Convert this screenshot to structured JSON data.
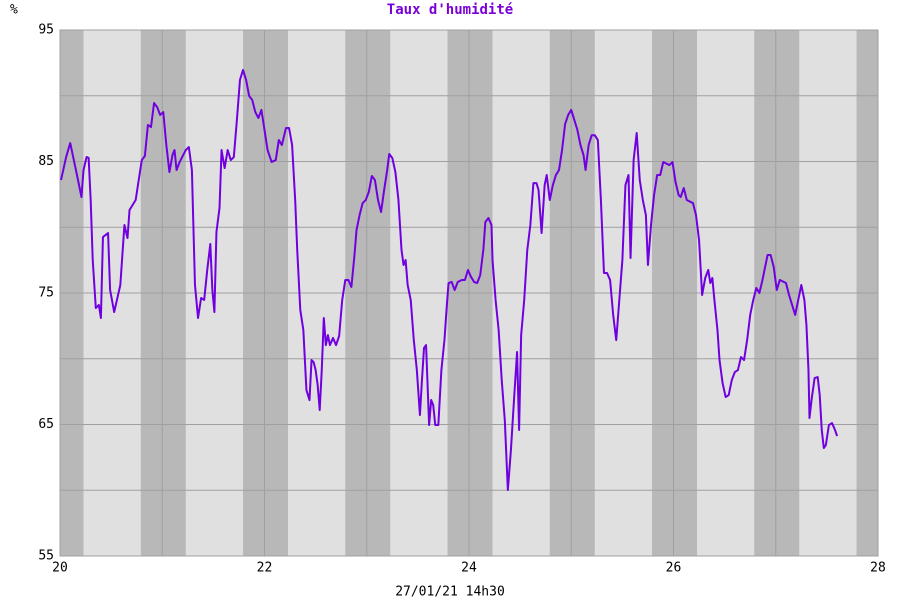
{
  "chart_data": {
    "type": "line",
    "title": "Taux d'humidité",
    "ylabel": "%",
    "xlabel": "27/01/21 14h30",
    "color": "#7000e0",
    "plot_background": "#e0e0e0",
    "band_color": "#b8b8b8",
    "grid_color": "#a0a0a0",
    "xlim": [
      20,
      28
    ],
    "xticks": [
      20,
      22,
      24,
      26,
      28
    ],
    "x_minor_grid": [
      21,
      23,
      25,
      27
    ],
    "ylim": [
      55,
      95
    ],
    "yticks": [
      55,
      65,
      75,
      85,
      95
    ],
    "y_minor_grid": [
      60,
      70,
      80,
      90
    ],
    "grid": true,
    "night_bands": [
      [
        20,
        20.23
      ],
      [
        20.79,
        21.23
      ],
      [
        21.79,
        22.23
      ],
      [
        22.79,
        23.23
      ],
      [
        23.79,
        24.23
      ],
      [
        24.79,
        25.23
      ],
      [
        25.79,
        26.23
      ],
      [
        26.79,
        27.23
      ],
      [
        27.79,
        28
      ]
    ],
    "x": [
      20.01,
      20.06,
      20.1,
      20.16,
      20.21,
      20.23,
      20.26,
      20.28,
      20.3,
      20.32,
      20.35,
      20.38,
      20.4,
      20.42,
      20.47,
      20.49,
      20.53,
      20.59,
      20.63,
      20.66,
      20.68,
      20.74,
      20.8,
      20.83,
      20.86,
      20.89,
      20.92,
      20.95,
      20.98,
      21.01,
      21.04,
      21.07,
      21.1,
      21.12,
      21.14,
      21.17,
      21.23,
      21.26,
      21.29,
      21.32,
      21.35,
      21.38,
      21.41,
      21.44,
      21.47,
      21.49,
      21.51,
      21.53,
      21.56,
      21.58,
      21.61,
      21.64,
      21.67,
      21.7,
      21.73,
      21.76,
      21.79,
      21.82,
      21.85,
      21.88,
      21.91,
      21.94,
      21.97,
      22.0,
      22.03,
      22.07,
      22.11,
      22.14,
      22.17,
      22.21,
      22.24,
      22.27,
      22.3,
      22.32,
      22.35,
      22.38,
      22.41,
      22.44,
      22.46,
      22.48,
      22.5,
      22.52,
      22.54,
      22.56,
      22.58,
      22.6,
      22.62,
      22.64,
      22.67,
      22.7,
      22.73,
      22.76,
      22.79,
      22.82,
      22.85,
      22.88,
      22.9,
      22.93,
      22.96,
      22.99,
      23.02,
      23.05,
      23.08,
      23.11,
      23.14,
      23.17,
      23.2,
      23.22,
      23.25,
      23.28,
      23.31,
      23.34,
      23.36,
      23.38,
      23.4,
      23.43,
      23.46,
      23.49,
      23.52,
      23.54,
      23.56,
      23.58,
      23.61,
      23.63,
      23.65,
      23.67,
      23.7,
      23.73,
      23.76,
      23.78,
      23.8,
      23.83,
      23.86,
      23.89,
      23.93,
      23.96,
      23.99,
      24.02,
      24.05,
      24.08,
      24.11,
      24.14,
      24.16,
      24.19,
      24.22,
      24.23,
      24.26,
      24.29,
      24.32,
      24.35,
      24.38,
      24.41,
      24.44,
      24.47,
      24.49,
      24.51,
      24.54,
      24.57,
      24.6,
      24.63,
      24.66,
      24.68,
      24.71,
      24.74,
      24.76,
      24.79,
      24.82,
      24.85,
      24.88,
      24.91,
      24.94,
      24.97,
      25.0,
      25.03,
      25.06,
      25.09,
      25.12,
      25.14,
      25.17,
      25.2,
      25.23,
      25.26,
      25.29,
      25.32,
      25.35,
      25.38,
      25.41,
      25.44,
      25.47,
      25.5,
      25.53,
      25.56,
      25.58,
      25.61,
      25.64,
      25.67,
      25.7,
      25.73,
      25.75,
      25.78,
      25.81,
      25.84,
      25.87,
      25.9,
      25.96,
      25.99,
      26.02,
      26.05,
      26.07,
      26.1,
      26.13,
      26.19,
      26.22,
      26.25,
      26.28,
      26.31,
      26.34,
      26.36,
      26.38,
      26.4,
      26.43,
      26.45,
      26.48,
      26.51,
      26.54,
      26.57,
      26.6,
      26.63,
      26.66,
      26.69,
      26.72,
      26.75,
      26.78,
      26.81,
      26.84,
      26.87,
      26.89,
      26.92,
      26.95,
      26.98,
      27.01,
      27.04,
      27.1,
      27.13,
      27.16,
      27.19,
      27.22,
      27.25,
      27.28,
      27.3,
      27.32,
      27.33,
      27.35,
      27.38,
      27.41,
      27.43,
      27.45,
      27.47,
      27.49,
      27.52,
      27.55,
      27.58,
      27.6
    ],
    "values": [
      83.59,
      85.34,
      86.4,
      84.2,
      82.3,
      84.35,
      85.34,
      85.27,
      82.07,
      77.51,
      73.86,
      74.09,
      73.1,
      79.26,
      79.56,
      75.23,
      73.55,
      75.61,
      80.17,
      79.18,
      81.31,
      82.07,
      85.11,
      85.42,
      87.78,
      87.62,
      89.45,
      89.14,
      88.54,
      88.76,
      86.25,
      84.2,
      85.49,
      85.87,
      84.35,
      84.96,
      85.87,
      86.1,
      84.35,
      75.61,
      73.1,
      74.62,
      74.47,
      76.75,
      78.73,
      75.23,
      73.55,
      79.64,
      81.46,
      85.87,
      84.5,
      85.87,
      85.11,
      85.34,
      88.16,
      91.2,
      91.96,
      91.2,
      89.98,
      89.68,
      88.76,
      88.31,
      88.92,
      87.4,
      85.87,
      84.96,
      85.11,
      86.63,
      86.25,
      87.55,
      87.55,
      86.25,
      82.07,
      78.27,
      73.71,
      72.18,
      67.62,
      66.86,
      69.9,
      69.75,
      69.14,
      68.0,
      66.1,
      69.14,
      73.1,
      71.04,
      71.8,
      71.04,
      71.58,
      71.04,
      71.73,
      74.47,
      75.99,
      75.99,
      75.46,
      77.89,
      79.79,
      80.93,
      81.84,
      82.07,
      82.68,
      83.9,
      83.59,
      82.07,
      81.16,
      82.83,
      84.35,
      85.57,
      85.27,
      84.2,
      82.07,
      78.27,
      77.13,
      77.51,
      75.61,
      74.47,
      71.42,
      69.14,
      65.72,
      68.38,
      70.82,
      71.04,
      64.96,
      66.86,
      66.48,
      64.96,
      64.96,
      69.14,
      71.42,
      73.71,
      75.76,
      75.84,
      75.23,
      75.84,
      75.99,
      75.99,
      76.75,
      76.22,
      75.84,
      75.76,
      76.37,
      78.27,
      80.4,
      80.7,
      80.17,
      77.51,
      74.47,
      72.18,
      68.38,
      65.34,
      60.02,
      63.06,
      66.86,
      70.51,
      64.58,
      71.8,
      74.47,
      78.27,
      80.17,
      83.36,
      83.36,
      82.83,
      79.56,
      83.21,
      83.97,
      82.07,
      83.21,
      83.97,
      84.35,
      85.87,
      87.85,
      88.54,
      88.92,
      88.16,
      87.4,
      86.25,
      85.49,
      84.35,
      86.25,
      87.0,
      87.0,
      86.63,
      82.07,
      76.52,
      76.52,
      75.99,
      73.33,
      71.42,
      74.47,
      77.51,
      83.21,
      83.97,
      77.66,
      85.11,
      87.17,
      83.59,
      82.07,
      80.93,
      77.13,
      80.17,
      82.45,
      83.97,
      83.97,
      84.96,
      84.73,
      84.96,
      83.44,
      82.45,
      82.3,
      82.98,
      82.07,
      81.84,
      80.93,
      79.03,
      74.85,
      76.14,
      76.75,
      75.76,
      76.14,
      74.47,
      72.18,
      69.9,
      68.15,
      67.09,
      67.24,
      68.38,
      68.99,
      69.14,
      70.13,
      69.9,
      71.42,
      73.33,
      74.47,
      75.38,
      75.0,
      75.99,
      76.75,
      77.89,
      77.89,
      76.98,
      75.23,
      75.99,
      75.76,
      74.85,
      74.09,
      73.33,
      74.47,
      75.61,
      74.47,
      72.57,
      69.14,
      65.49,
      66.86,
      68.53,
      68.61,
      67.24,
      64.58,
      63.21,
      63.44,
      64.96,
      65.11,
      64.58,
      64.12
    ]
  }
}
